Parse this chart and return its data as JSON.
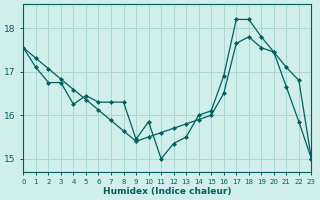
{
  "xlabel": "Humidex (Indice chaleur)",
  "background_color": "#d0eeea",
  "grid_color": "#aad8d2",
  "line_color": "#006060",
  "xlim": [
    0,
    23
  ],
  "ylim": [
    14.7,
    18.55
  ],
  "x_ticks": [
    0,
    1,
    2,
    3,
    4,
    5,
    6,
    7,
    8,
    9,
    10,
    11,
    12,
    13,
    14,
    15,
    16,
    17,
    18,
    19,
    20,
    21,
    22,
    23
  ],
  "y_ticks": [
    15,
    16,
    17,
    18
  ],
  "series1_x": [
    0,
    1,
    2,
    3,
    4,
    5,
    6,
    7,
    8,
    9,
    10,
    11,
    12,
    13,
    14,
    15,
    16,
    17,
    18,
    19,
    20,
    21,
    22,
    23
  ],
  "series1_y": [
    17.55,
    17.1,
    16.75,
    16.75,
    16.25,
    16.45,
    16.3,
    16.3,
    16.3,
    15.45,
    15.85,
    15.0,
    15.35,
    15.5,
    16.0,
    16.1,
    16.9,
    18.2,
    18.2,
    17.8,
    17.45,
    16.65,
    15.85,
    15.0
  ],
  "series2_x": [
    0,
    1,
    2,
    3,
    4,
    5,
    6,
    7,
    8,
    9,
    10,
    11,
    12,
    13,
    14,
    15,
    16,
    17,
    18,
    19,
    20,
    21,
    22,
    23
  ],
  "series2_y": [
    17.55,
    17.31,
    17.07,
    16.83,
    16.59,
    16.36,
    16.12,
    15.88,
    15.64,
    15.4,
    15.5,
    15.6,
    15.7,
    15.8,
    15.9,
    16.0,
    16.5,
    17.65,
    17.8,
    17.55,
    17.45,
    17.1,
    16.8,
    15.0
  ]
}
